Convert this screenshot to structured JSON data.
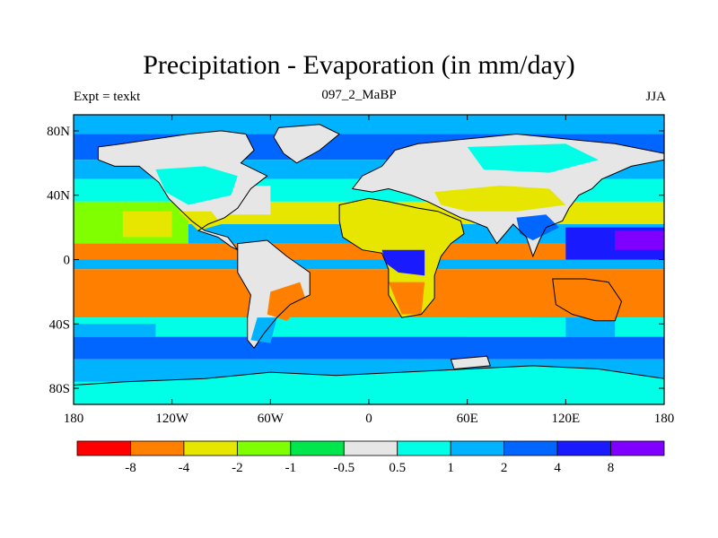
{
  "title": "Precipitation - Evaporation (in mm/day)",
  "left_string": "Expt = texkt",
  "center_string": "097_2_MaBP",
  "right_string": "JJA",
  "chart_data": {
    "type": "heatmap",
    "title": "Precipitation - Evaporation (in mm/day)",
    "units": "mm/day",
    "projection": "cylindrical equidistant",
    "xlim": [
      -180,
      180
    ],
    "ylim": [
      -90,
      90
    ],
    "lat_ticks": [
      {
        "value": 80,
        "label": "80N"
      },
      {
        "value": 40,
        "label": "40N"
      },
      {
        "value": 0,
        "label": "0"
      },
      {
        "value": -40,
        "label": "40S"
      },
      {
        "value": -80,
        "label": "80S"
      }
    ],
    "lon_ticks": [
      {
        "value": -180,
        "label": "180"
      },
      {
        "value": -120,
        "label": "120W"
      },
      {
        "value": -60,
        "label": "60W"
      },
      {
        "value": 0,
        "label": "0"
      },
      {
        "value": 60,
        "label": "60E"
      },
      {
        "value": 120,
        "label": "120E"
      },
      {
        "value": 180,
        "label": "180"
      }
    ],
    "colorbar": {
      "colors": [
        "#ff0000",
        "#ff8000",
        "#e6e600",
        "#80ff00",
        "#00e64d",
        "#e6e6e6",
        "#00ffe6",
        "#00b3ff",
        "#0066ff",
        "#1a1aff",
        "#8000ff"
      ],
      "labels": [
        "-8",
        "-4",
        "-2",
        "-1",
        "-0.5",
        "0.5",
        "1",
        "2",
        "4",
        "8"
      ]
    },
    "zonal_bands": [
      {
        "lat_from": 90,
        "lat_to": 78,
        "class": 7
      },
      {
        "lat_from": 78,
        "lat_to": 62,
        "class": 8
      },
      {
        "lat_from": 62,
        "lat_to": 50,
        "class": 7
      },
      {
        "lat_from": 50,
        "lat_to": 36,
        "class": 6
      },
      {
        "lat_from": 36,
        "lat_to": 22,
        "class": 2
      },
      {
        "lat_from": 22,
        "lat_to": 10,
        "class": 7
      },
      {
        "lat_from": 10,
        "lat_to": 0,
        "class": 1
      },
      {
        "lat_from": 0,
        "lat_to": -6,
        "class": 7
      },
      {
        "lat_from": -6,
        "lat_to": -36,
        "class": 1
      },
      {
        "lat_from": -36,
        "lat_to": -48,
        "class": 6
      },
      {
        "lat_from": -48,
        "lat_to": -62,
        "class": 8
      },
      {
        "lat_from": -62,
        "lat_to": -76,
        "class": 7
      },
      {
        "lat_from": -76,
        "lat_to": -90,
        "class": 6
      }
    ],
    "patches": [
      {
        "lon_from": -180,
        "lon_to": -110,
        "lat_from": 36,
        "lat_to": 10,
        "class": 3
      },
      {
        "lon_from": -150,
        "lon_to": -120,
        "lat_from": 30,
        "lat_to": 14,
        "class": 2
      },
      {
        "lon_from": -110,
        "lon_to": -60,
        "lat_from": 46,
        "lat_to": 28,
        "class": 5
      },
      {
        "lon_from": -180,
        "lon_to": -130,
        "lat_from": -40,
        "lat_to": -48,
        "class": 7
      },
      {
        "lon_from": 120,
        "lon_to": 180,
        "lat_from": 20,
        "lat_to": 0,
        "class": 9
      },
      {
        "lon_from": 150,
        "lon_to": 180,
        "lat_from": 18,
        "lat_to": 6,
        "class": 10
      },
      {
        "lon_from": 100,
        "lon_to": 150,
        "lat_from": -36,
        "lat_to": -48,
        "class": 7
      },
      {
        "lon_from": 60,
        "lon_to": 120,
        "lat_from": -36,
        "lat_to": -48,
        "class": 6
      }
    ],
    "land": [
      {
        "name": "north-america",
        "points": [
          [
            -165,
            70
          ],
          [
            -150,
            72
          ],
          [
            -130,
            75
          ],
          [
            -110,
            78
          ],
          [
            -90,
            80
          ],
          [
            -75,
            78
          ],
          [
            -70,
            68
          ],
          [
            -78,
            60
          ],
          [
            -62,
            52
          ],
          [
            -72,
            44
          ],
          [
            -80,
            32
          ],
          [
            -88,
            26
          ],
          [
            -98,
            22
          ],
          [
            -104,
            18
          ],
          [
            -92,
            14
          ],
          [
            -84,
            8
          ],
          [
            -80,
            6
          ],
          [
            -86,
            14
          ],
          [
            -100,
            18
          ],
          [
            -108,
            24
          ],
          [
            -114,
            30
          ],
          [
            -122,
            38
          ],
          [
            -128,
            48
          ],
          [
            -140,
            58
          ],
          [
            -155,
            58
          ],
          [
            -165,
            62
          ]
        ],
        "fill_class": 5,
        "patches": [
          {
            "points": [
              [
                -130,
                56
              ],
              [
                -100,
                58
              ],
              [
                -80,
                52
              ],
              [
                -84,
                40
              ],
              [
                -110,
                34
              ],
              [
                -124,
                42
              ]
            ],
            "class": 6
          },
          {
            "points": [
              [
                -116,
                30
              ],
              [
                -96,
                30
              ],
              [
                -90,
                22
              ],
              [
                -104,
                18
              ]
            ],
            "class": 2
          }
        ]
      },
      {
        "name": "greenland",
        "points": [
          [
            -55,
            82
          ],
          [
            -30,
            84
          ],
          [
            -18,
            78
          ],
          [
            -30,
            68
          ],
          [
            -44,
            60
          ],
          [
            -52,
            66
          ],
          [
            -58,
            76
          ]
        ],
        "fill_class": 5
      },
      {
        "name": "south-america",
        "points": [
          [
            -80,
            10
          ],
          [
            -62,
            12
          ],
          [
            -50,
            2
          ],
          [
            -36,
            -8
          ],
          [
            -36,
            -22
          ],
          [
            -48,
            -28
          ],
          [
            -56,
            -36
          ],
          [
            -64,
            -46
          ],
          [
            -70,
            -55
          ],
          [
            -74,
            -50
          ],
          [
            -74,
            -36
          ],
          [
            -72,
            -22
          ],
          [
            -80,
            -8
          ],
          [
            -80,
            2
          ]
        ],
        "fill_class": 5,
        "patches": [
          {
            "points": [
              [
                -60,
                -20
              ],
              [
                -42,
                -14
              ],
              [
                -38,
                -26
              ],
              [
                -50,
                -38
              ],
              [
                -62,
                -34
              ]
            ],
            "class": 1
          },
          {
            "points": [
              [
                -68,
                -36
              ],
              [
                -56,
                -36
              ],
              [
                -60,
                -52
              ],
              [
                -72,
                -50
              ]
            ],
            "class": 7
          }
        ]
      },
      {
        "name": "africa-arabia",
        "points": [
          [
            -18,
            34
          ],
          [
            0,
            38
          ],
          [
            12,
            36
          ],
          [
            30,
            32
          ],
          [
            42,
            30
          ],
          [
            56,
            24
          ],
          [
            58,
            16
          ],
          [
            50,
            10
          ],
          [
            44,
            2
          ],
          [
            40,
            -10
          ],
          [
            40,
            -24
          ],
          [
            32,
            -34
          ],
          [
            20,
            -36
          ],
          [
            12,
            -22
          ],
          [
            12,
            -6
          ],
          [
            8,
            4
          ],
          [
            -4,
            6
          ],
          [
            -16,
            14
          ],
          [
            -18,
            24
          ]
        ],
        "fill_class": 2,
        "patches": [
          {
            "points": [
              [
                -16,
                24
              ],
              [
                30,
                28
              ],
              [
                44,
                18
              ],
              [
                40,
                8
              ],
              [
                10,
                6
              ],
              [
                -10,
                10
              ]
            ],
            "class": 2
          },
          {
            "points": [
              [
                8,
                6
              ],
              [
                34,
                6
              ],
              [
                34,
                -10
              ],
              [
                18,
                -8
              ],
              [
                10,
                -2
              ]
            ],
            "class": 9
          },
          {
            "points": [
              [
                12,
                -14
              ],
              [
                34,
                -14
              ],
              [
                32,
                -34
              ],
              [
                20,
                -34
              ]
            ],
            "class": 1
          }
        ]
      },
      {
        "name": "eurasia",
        "points": [
          [
            -10,
            44
          ],
          [
            -4,
            52
          ],
          [
            8,
            58
          ],
          [
            16,
            68
          ],
          [
            30,
            72
          ],
          [
            50,
            74
          ],
          [
            70,
            76
          ],
          [
            90,
            78
          ],
          [
            110,
            76
          ],
          [
            130,
            74
          ],
          [
            150,
            72
          ],
          [
            170,
            68
          ],
          [
            180,
            66
          ],
          [
            180,
            62
          ],
          [
            160,
            58
          ],
          [
            142,
            50
          ],
          [
            136,
            44
          ],
          [
            128,
            40
          ],
          [
            122,
            32
          ],
          [
            118,
            24
          ],
          [
            108,
            20
          ],
          [
            104,
            12
          ],
          [
            100,
            2
          ],
          [
            96,
            14
          ],
          [
            88,
            22
          ],
          [
            78,
            10
          ],
          [
            72,
            20
          ],
          [
            62,
            24
          ],
          [
            56,
            26
          ],
          [
            48,
            30
          ],
          [
            36,
            36
          ],
          [
            26,
            40
          ],
          [
            12,
            44
          ],
          [
            2,
            42
          ]
        ],
        "fill_class": 5,
        "patches": [
          {
            "points": [
              [
                40,
                42
              ],
              [
                80,
                46
              ],
              [
                110,
                44
              ],
              [
                120,
                34
              ],
              [
                90,
                30
              ],
              [
                60,
                30
              ],
              [
                44,
                34
              ]
            ],
            "class": 2
          },
          {
            "points": [
              [
                60,
                70
              ],
              [
                120,
                72
              ],
              [
                140,
                62
              ],
              [
                110,
                54
              ],
              [
                70,
                56
              ]
            ],
            "class": 6
          },
          {
            "points": [
              [
                90,
                26
              ],
              [
                108,
                28
              ],
              [
                116,
                20
              ],
              [
                100,
                12
              ],
              [
                92,
                16
              ]
            ],
            "class": 8
          }
        ]
      },
      {
        "name": "australia-block",
        "points": [
          [
            112,
            -12
          ],
          [
            132,
            -12
          ],
          [
            146,
            -14
          ],
          [
            154,
            -26
          ],
          [
            150,
            -38
          ],
          [
            138,
            -38
          ],
          [
            124,
            -34
          ],
          [
            114,
            -28
          ]
        ],
        "fill_class": 1
      },
      {
        "name": "antarctica",
        "points": [
          [
            -180,
            -78
          ],
          [
            -150,
            -76
          ],
          [
            -100,
            -74
          ],
          [
            -60,
            -70
          ],
          [
            -20,
            -72
          ],
          [
            20,
            -70
          ],
          [
            60,
            -68
          ],
          [
            100,
            -66
          ],
          [
            140,
            -68
          ],
          [
            180,
            -74
          ],
          [
            180,
            -90
          ],
          [
            -180,
            -90
          ]
        ],
        "fill_class": 6
      },
      {
        "name": "antarctic-island",
        "points": [
          [
            50,
            -62
          ],
          [
            72,
            -60
          ],
          [
            74,
            -66
          ],
          [
            52,
            -68
          ]
        ],
        "fill_class": 5
      }
    ]
  }
}
